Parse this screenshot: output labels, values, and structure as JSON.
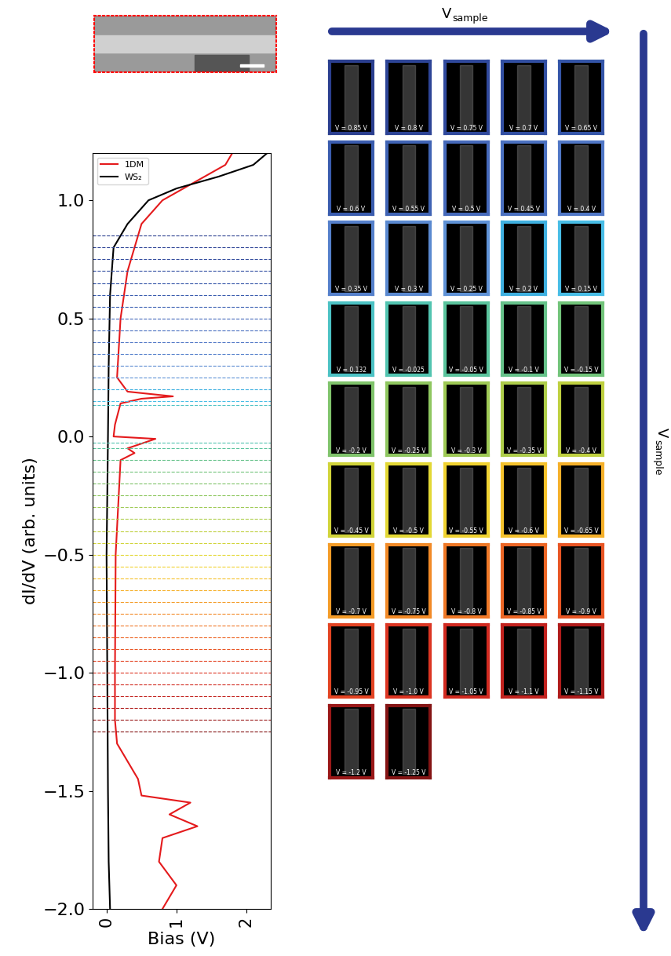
{
  "chart_data": {
    "type": "line",
    "xlabel": "Bias (V)",
    "ylabel": "dI/dV (arb. units)",
    "xlim": [
      -0.2,
      2.35
    ],
    "ylim": [
      -2.0,
      1.2
    ],
    "xticks": [
      0,
      1,
      2
    ],
    "yticks": [
      {
        "value": -2.0,
        "label": "−2.0"
      },
      {
        "value": -1.5,
        "label": "−1.5"
      },
      {
        "value": -1.0,
        "label": "−1.0"
      },
      {
        "value": -0.5,
        "label": "−0.5"
      },
      {
        "value": 0.0,
        "label": "0.0"
      },
      {
        "value": 0.5,
        "label": "0.5"
      },
      {
        "value": 1.0,
        "label": "1.0"
      }
    ],
    "legend": "upper left",
    "series": [
      {
        "name": "1DM",
        "color": "#e41a1c",
        "x": [
          0.8,
          1.0,
          0.75,
          0.8,
          1.3,
          0.9,
          1.2,
          0.5,
          0.45,
          0.35,
          0.25,
          0.15,
          0.12,
          0.12,
          0.13,
          0.2,
          0.4,
          0.3,
          0.7,
          0.1,
          0.12,
          0.2,
          0.5,
          0.95,
          0.3,
          0.15,
          0.2,
          0.3,
          0.4,
          0.5,
          0.8,
          1.1,
          1.4,
          1.7,
          1.8
        ],
        "y": [
          -2.0,
          -1.9,
          -1.8,
          -1.7,
          -1.65,
          -1.6,
          -1.55,
          -1.52,
          -1.45,
          -1.4,
          -1.35,
          -1.3,
          -1.2,
          -1.0,
          -0.5,
          -0.1,
          -0.07,
          -0.05,
          -0.01,
          0.0,
          0.05,
          0.14,
          0.16,
          0.17,
          0.19,
          0.25,
          0.5,
          0.7,
          0.8,
          0.9,
          1.0,
          1.05,
          1.1,
          1.15,
          1.2
        ]
      },
      {
        "name": "WS₂",
        "color": "#000000",
        "x": [
          0.05,
          0.03,
          0.02,
          0.01,
          0.0,
          0.02,
          0.03,
          0.05,
          0.1,
          0.3,
          0.6,
          1.0,
          1.6,
          2.1,
          2.3
        ],
        "y": [
          -2.0,
          -1.8,
          -1.5,
          -1.0,
          -0.5,
          0.0,
          0.3,
          0.6,
          0.8,
          0.9,
          1.0,
          1.05,
          1.1,
          1.15,
          1.2
        ]
      }
    ]
  },
  "arrow_label": {
    "main": "V",
    "subscript": "sample"
  },
  "panels": [
    {
      "label": "V = 0.85 V",
      "value": 0.85,
      "color": "#2b3f8f"
    },
    {
      "label": "V = 0.8 V",
      "value": 0.8,
      "color": "#2d4496"
    },
    {
      "label": "V = 0.75 V",
      "value": 0.75,
      "color": "#30499c"
    },
    {
      "label": "V = 0.7 V",
      "value": 0.7,
      "color": "#324fa2"
    },
    {
      "label": "V = 0.65 V",
      "value": 0.65,
      "color": "#3455a8"
    },
    {
      "label": "V = 0.6 V",
      "value": 0.6,
      "color": "#3a5cae"
    },
    {
      "label": "V = 0.55 V",
      "value": 0.55,
      "color": "#3f63b4"
    },
    {
      "label": "V = 0.5 V",
      "value": 0.5,
      "color": "#4569ba"
    },
    {
      "label": "V = 0.45 V",
      "value": 0.45,
      "color": "#4a70c0"
    },
    {
      "label": "V = 0.4 V",
      "value": 0.4,
      "color": "#5077c6"
    },
    {
      "label": "V = 0.35 V",
      "value": 0.35,
      "color": "#5580cb"
    },
    {
      "label": "V = 0.3 V",
      "value": 0.3,
      "color": "#5a89d0"
    },
    {
      "label": "V = 0.25 V",
      "value": 0.25,
      "color": "#5f92d6"
    },
    {
      "label": "V = 0.2 V",
      "value": 0.2,
      "color": "#3fb0e0"
    },
    {
      "label": "V = 0.15 V",
      "value": 0.15,
      "color": "#48bde6"
    },
    {
      "label": "V = 0.132",
      "value": 0.132,
      "color": "#4cc2c4"
    },
    {
      "label": "V = -0.025",
      "value": -0.025,
      "color": "#52c4b0"
    },
    {
      "label": "V = -0.05 V",
      "value": -0.05,
      "color": "#5ac39c"
    },
    {
      "label": "V = -0.1 V",
      "value": -0.1,
      "color": "#66c28a"
    },
    {
      "label": "V = -0.15 V",
      "value": -0.15,
      "color": "#72c47a"
    },
    {
      "label": "V = -0.2 V",
      "value": -0.2,
      "color": "#80c46c"
    },
    {
      "label": "V = -0.25 V",
      "value": -0.25,
      "color": "#8fc760"
    },
    {
      "label": "V = -0.3 V",
      "value": -0.3,
      "color": "#9ec955"
    },
    {
      "label": "V = -0.35 V",
      "value": -0.35,
      "color": "#aecd4a"
    },
    {
      "label": "V = -0.4 V",
      "value": -0.4,
      "color": "#bfd040"
    },
    {
      "label": "V = -0.45 V",
      "value": -0.45,
      "color": "#d1d43a"
    },
    {
      "label": "V = -0.5 V",
      "value": -0.5,
      "color": "#e3d835"
    },
    {
      "label": "V = -0.55 V",
      "value": -0.55,
      "color": "#f0d230"
    },
    {
      "label": "V = -0.6 V",
      "value": -0.6,
      "color": "#f5c22c"
    },
    {
      "label": "V = -0.65 V",
      "value": -0.65,
      "color": "#f5b02a"
    },
    {
      "label": "V = -0.7 V",
      "value": -0.7,
      "color": "#f49c28"
    },
    {
      "label": "V = -0.75 V",
      "value": -0.75,
      "color": "#f28a27"
    },
    {
      "label": "V = -0.8 V",
      "value": -0.8,
      "color": "#ef7826"
    },
    {
      "label": "V = -0.85 V",
      "value": -0.85,
      "color": "#ec6625"
    },
    {
      "label": "V = -0.9 V",
      "value": -0.9,
      "color": "#e85524"
    },
    {
      "label": "V = -0.95 V",
      "value": -0.95,
      "color": "#e34423"
    },
    {
      "label": "V = -1.0 V",
      "value": -1.0,
      "color": "#dc3522"
    },
    {
      "label": "V = -1.05 V",
      "value": -1.05,
      "color": "#d12a20"
    },
    {
      "label": "V = -1.1 V",
      "value": -1.1,
      "color": "#c2221e"
    },
    {
      "label": "V = -1.15 V",
      "value": -1.15,
      "color": "#b01c1b"
    },
    {
      "label": "V = -1.2 V",
      "value": -1.2,
      "color": "#9a1818"
    },
    {
      "label": "V = -1.25 V",
      "value": -1.25,
      "color": "#841414"
    }
  ]
}
